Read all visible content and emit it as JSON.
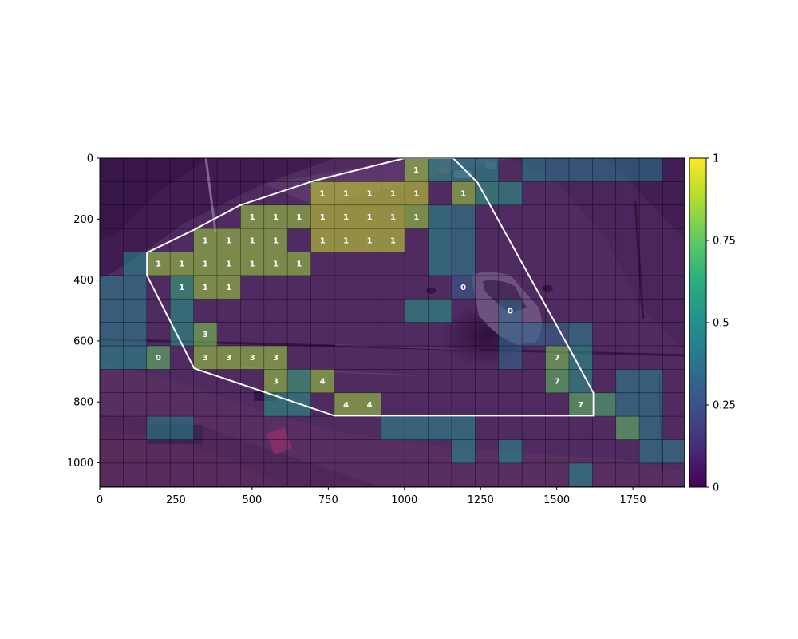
{
  "chart_data": {
    "type": "heatmap",
    "title": "",
    "xlabel": "",
    "ylabel": "",
    "xlim": [
      0,
      1920
    ],
    "ylim": [
      1080,
      0
    ],
    "cell_size": [
      77,
      77
    ],
    "x_ticks": [
      0,
      250,
      500,
      750,
      1000,
      1250,
      1500,
      1750
    ],
    "y_ticks": [
      0,
      200,
      400,
      600,
      800,
      1000
    ],
    "colorbar": {
      "min": 0,
      "max": 1,
      "ticks": [
        "0",
        "0.25",
        "0.5",
        "0.75",
        "1"
      ],
      "colormap": "viridis"
    },
    "background_photo": "traffic intersection camera view",
    "grid": true,
    "zone_polygon": [
      [
        155,
        310
      ],
      [
        155,
        385
      ],
      [
        310,
        690
      ],
      [
        770,
        845
      ],
      [
        1620,
        845
      ],
      [
        1620,
        770
      ],
      [
        1550,
        640
      ],
      [
        1240,
        80
      ],
      [
        1160,
        0
      ],
      [
        1000,
        0
      ],
      [
        700,
        75
      ],
      [
        460,
        155
      ],
      [
        310,
        235
      ],
      [
        155,
        310
      ]
    ],
    "cells": [
      {
        "x": 1000,
        "y": 0,
        "v": 0.85,
        "label": "1"
      },
      {
        "x": 1078,
        "y": 0,
        "v": 0.55
      },
      {
        "x": 1155,
        "y": 0,
        "v": 0.5
      },
      {
        "x": 1232,
        "y": 0,
        "v": 0.5
      },
      {
        "x": 1385,
        "y": 0,
        "v": 0.45
      },
      {
        "x": 1462,
        "y": 0,
        "v": 0.4
      },
      {
        "x": 1540,
        "y": 0,
        "v": 0.4
      },
      {
        "x": 1617,
        "y": 0,
        "v": 0.4
      },
      {
        "x": 1694,
        "y": 0,
        "v": 0.4
      },
      {
        "x": 1771,
        "y": 0,
        "v": 0.4
      },
      {
        "x": 692,
        "y": 77,
        "v": 0.92,
        "label": "1"
      },
      {
        "x": 770,
        "y": 77,
        "v": 0.92,
        "label": "1"
      },
      {
        "x": 847,
        "y": 77,
        "v": 0.92,
        "label": "1"
      },
      {
        "x": 924,
        "y": 77,
        "v": 0.92,
        "label": "1"
      },
      {
        "x": 1001,
        "y": 77,
        "v": 0.92,
        "label": "1"
      },
      {
        "x": 1155,
        "y": 77,
        "v": 0.85,
        "label": "1"
      },
      {
        "x": 1232,
        "y": 77,
        "v": 0.6
      },
      {
        "x": 1309,
        "y": 77,
        "v": 0.55
      },
      {
        "x": 462,
        "y": 154,
        "v": 0.85,
        "label": "1"
      },
      {
        "x": 539,
        "y": 154,
        "v": 0.85,
        "label": "1"
      },
      {
        "x": 616,
        "y": 154,
        "v": 0.85,
        "label": "1"
      },
      {
        "x": 693,
        "y": 154,
        "v": 0.92,
        "label": "1"
      },
      {
        "x": 770,
        "y": 154,
        "v": 0.92,
        "label": "1"
      },
      {
        "x": 847,
        "y": 154,
        "v": 0.92,
        "label": "1"
      },
      {
        "x": 924,
        "y": 154,
        "v": 0.92,
        "label": "1"
      },
      {
        "x": 1001,
        "y": 154,
        "v": 0.85,
        "label": "1"
      },
      {
        "x": 1078,
        "y": 154,
        "v": 0.5
      },
      {
        "x": 1155,
        "y": 154,
        "v": 0.45
      },
      {
        "x": 308,
        "y": 231,
        "v": 0.85,
        "label": "1"
      },
      {
        "x": 385,
        "y": 231,
        "v": 0.85,
        "label": "1"
      },
      {
        "x": 462,
        "y": 231,
        "v": 0.85,
        "label": "1"
      },
      {
        "x": 539,
        "y": 231,
        "v": 0.85,
        "label": "1"
      },
      {
        "x": 693,
        "y": 231,
        "v": 0.92,
        "label": "1"
      },
      {
        "x": 770,
        "y": 231,
        "v": 0.92,
        "label": "1"
      },
      {
        "x": 847,
        "y": 231,
        "v": 0.92,
        "label": "1"
      },
      {
        "x": 924,
        "y": 231,
        "v": 0.92,
        "label": "1"
      },
      {
        "x": 1078,
        "y": 231,
        "v": 0.5
      },
      {
        "x": 1155,
        "y": 231,
        "v": 0.45
      },
      {
        "x": 77,
        "y": 308,
        "v": 0.5
      },
      {
        "x": 154,
        "y": 308,
        "v": 0.85,
        "label": "1"
      },
      {
        "x": 231,
        "y": 308,
        "v": 0.85,
        "label": "1"
      },
      {
        "x": 308,
        "y": 308,
        "v": 0.85,
        "label": "1"
      },
      {
        "x": 385,
        "y": 308,
        "v": 0.85,
        "label": "1"
      },
      {
        "x": 462,
        "y": 308,
        "v": 0.85,
        "label": "1"
      },
      {
        "x": 539,
        "y": 308,
        "v": 0.85,
        "label": "1"
      },
      {
        "x": 616,
        "y": 308,
        "v": 0.85,
        "label": "1"
      },
      {
        "x": 1078,
        "y": 308,
        "v": 0.5
      },
      {
        "x": 1155,
        "y": 308,
        "v": 0.45
      },
      {
        "x": 0,
        "y": 385,
        "v": 0.45
      },
      {
        "x": 77,
        "y": 385,
        "v": 0.45
      },
      {
        "x": 231,
        "y": 385,
        "v": 0.65,
        "label": "1"
      },
      {
        "x": 308,
        "y": 385,
        "v": 0.85,
        "label": "1"
      },
      {
        "x": 385,
        "y": 385,
        "v": 0.85,
        "label": "1"
      },
      {
        "x": 1155,
        "y": 385,
        "v": 0.3,
        "label": "0"
      },
      {
        "x": 0,
        "y": 462,
        "v": 0.45
      },
      {
        "x": 77,
        "y": 462,
        "v": 0.45
      },
      {
        "x": 231,
        "y": 462,
        "v": 0.55
      },
      {
        "x": 1001,
        "y": 462,
        "v": 0.55
      },
      {
        "x": 1078,
        "y": 462,
        "v": 0.55
      },
      {
        "x": 1309,
        "y": 462,
        "v": 0.35,
        "label": "0"
      },
      {
        "x": 0,
        "y": 539,
        "v": 0.45
      },
      {
        "x": 77,
        "y": 539,
        "v": 0.45
      },
      {
        "x": 231,
        "y": 539,
        "v": 0.55
      },
      {
        "x": 308,
        "y": 539,
        "v": 0.8,
        "label": "3"
      },
      {
        "x": 1309,
        "y": 539,
        "v": 0.35
      },
      {
        "x": 1386,
        "y": 539,
        "v": 0.35
      },
      {
        "x": 1463,
        "y": 539,
        "v": 0.35
      },
      {
        "x": 1540,
        "y": 539,
        "v": 0.45
      },
      {
        "x": 0,
        "y": 616,
        "v": 0.5
      },
      {
        "x": 77,
        "y": 616,
        "v": 0.5
      },
      {
        "x": 154,
        "y": 616,
        "v": 0.75,
        "label": "0"
      },
      {
        "x": 308,
        "y": 616,
        "v": 0.85,
        "label": "3"
      },
      {
        "x": 385,
        "y": 616,
        "v": 0.85,
        "label": "3"
      },
      {
        "x": 462,
        "y": 616,
        "v": 0.85,
        "label": "3"
      },
      {
        "x": 539,
        "y": 616,
        "v": 0.85,
        "label": "3"
      },
      {
        "x": 1309,
        "y": 616,
        "v": 0.35
      },
      {
        "x": 1463,
        "y": 616,
        "v": 0.8,
        "label": "7"
      },
      {
        "x": 1540,
        "y": 616,
        "v": 0.55
      },
      {
        "x": 539,
        "y": 693,
        "v": 0.85,
        "label": "3"
      },
      {
        "x": 616,
        "y": 693,
        "v": 0.65
      },
      {
        "x": 693,
        "y": 693,
        "v": 0.85,
        "label": "4"
      },
      {
        "x": 1463,
        "y": 693,
        "v": 0.75,
        "label": "7"
      },
      {
        "x": 1540,
        "y": 693,
        "v": 0.55
      },
      {
        "x": 1694,
        "y": 693,
        "v": 0.45
      },
      {
        "x": 1771,
        "y": 693,
        "v": 0.45
      },
      {
        "x": 539,
        "y": 770,
        "v": 0.55
      },
      {
        "x": 616,
        "y": 770,
        "v": 0.55
      },
      {
        "x": 770,
        "y": 770,
        "v": 0.85,
        "label": "4"
      },
      {
        "x": 847,
        "y": 770,
        "v": 0.85,
        "label": "4"
      },
      {
        "x": 1540,
        "y": 770,
        "v": 0.75,
        "label": "7"
      },
      {
        "x": 1617,
        "y": 770,
        "v": 0.7
      },
      {
        "x": 1694,
        "y": 770,
        "v": 0.45
      },
      {
        "x": 1771,
        "y": 770,
        "v": 0.45
      },
      {
        "x": 154,
        "y": 847,
        "v": 0.45
      },
      {
        "x": 231,
        "y": 847,
        "v": 0.45
      },
      {
        "x": 924,
        "y": 847,
        "v": 0.5
      },
      {
        "x": 1001,
        "y": 847,
        "v": 0.5
      },
      {
        "x": 1078,
        "y": 847,
        "v": 0.5
      },
      {
        "x": 1155,
        "y": 847,
        "v": 0.5
      },
      {
        "x": 1694,
        "y": 847,
        "v": 0.75
      },
      {
        "x": 1771,
        "y": 847,
        "v": 0.45
      },
      {
        "x": 1155,
        "y": 924,
        "v": 0.5
      },
      {
        "x": 1309,
        "y": 924,
        "v": 0.5
      },
      {
        "x": 1771,
        "y": 924,
        "v": 0.45
      },
      {
        "x": 1848,
        "y": 924,
        "v": 0.45
      },
      {
        "x": 1540,
        "y": 1001,
        "v": 0.5
      }
    ]
  }
}
